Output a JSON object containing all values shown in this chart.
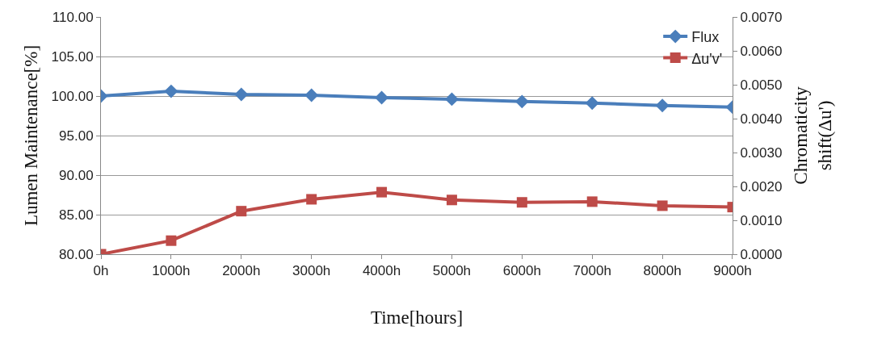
{
  "chart_data": {
    "type": "line",
    "xlabel": "Time[hours]",
    "ylabel": "Lumen Maintenance[%]",
    "y2label": "Chromaticity\nshift(Δu')",
    "categories": [
      "0h",
      "1000h",
      "2000h",
      "3000h",
      "4000h",
      "5000h",
      "6000h",
      "7000h",
      "8000h",
      "9000h"
    ],
    "series": [
      {
        "name": "Flux",
        "color": "#4a7ebb",
        "marker": "diamond",
        "values": [
          100.0,
          100.6,
          100.2,
          100.1,
          99.8,
          99.6,
          99.3,
          99.1,
          98.8,
          98.6
        ]
      },
      {
        "name": "Δu'v'",
        "color": "#be4b48",
        "marker": "square",
        "axis": "y2",
        "values": [
          0.0,
          0.0004,
          0.00127,
          0.00162,
          0.00183,
          0.0016,
          0.00153,
          0.00155,
          0.00143,
          0.00139
        ]
      }
    ],
    "ylim": [
      80,
      110
    ],
    "yticks": [
      {
        "value": 80,
        "label": "80.00"
      },
      {
        "value": 85,
        "label": "85.00"
      },
      {
        "value": 90,
        "label": "90.00"
      },
      {
        "value": 95,
        "label": "95.00"
      },
      {
        "value": 100,
        "label": "100.00"
      },
      {
        "value": 105,
        "label": "105.00"
      },
      {
        "value": 110,
        "label": "110.00"
      }
    ],
    "y2lim": [
      0,
      0.007
    ],
    "y2ticks": [
      {
        "value": 0,
        "label": "0.0000"
      },
      {
        "value": 0.001,
        "label": "0.0010"
      },
      {
        "value": 0.002,
        "label": "0.0020"
      },
      {
        "value": 0.003,
        "label": "0.0030"
      },
      {
        "value": 0.004,
        "label": "0.0040"
      },
      {
        "value": 0.005,
        "label": "0.0050"
      },
      {
        "value": 0.006,
        "label": "0.0060"
      },
      {
        "value": 0.007,
        "label": "0.0070"
      }
    ],
    "grid": "y",
    "legend": "top right"
  }
}
